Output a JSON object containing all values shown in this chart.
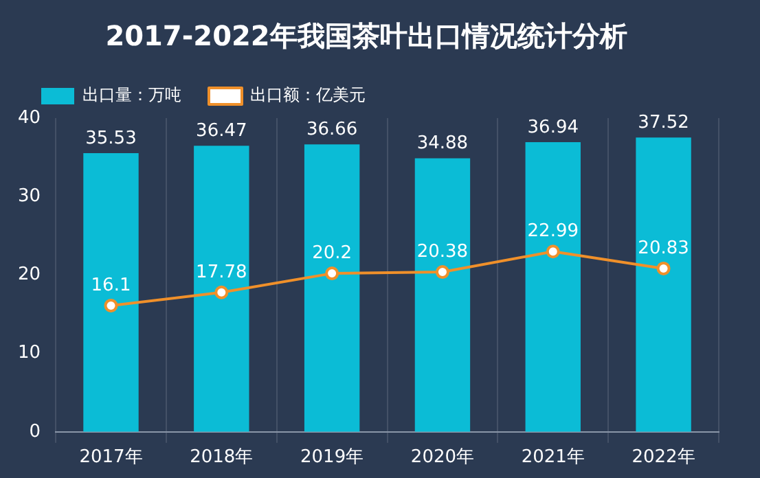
{
  "chart_data": {
    "type": "bar",
    "title": "2017-2022年我国茶叶出口情况统计分析",
    "categories": [
      "2017年",
      "2018年",
      "2019年",
      "2020年",
      "2021年",
      "2022年"
    ],
    "series": [
      {
        "name": "出口量：万吨",
        "color": "#0bbcd6",
        "values": [
          35.53,
          36.47,
          36.66,
          34.88,
          36.94,
          37.52
        ]
      },
      {
        "name": "出口额：亿美元",
        "type": "line",
        "color": "#f0902a",
        "values": [
          16.1,
          17.78,
          20.2,
          20.38,
          22.99,
          20.83
        ]
      }
    ],
    "ylim": [
      0,
      40
    ],
    "yticks": [
      0,
      10,
      20,
      30,
      40
    ],
    "grid": "x",
    "legend": "top left",
    "marker": "circle",
    "line_style": "solid",
    "data_labels": true
  }
}
